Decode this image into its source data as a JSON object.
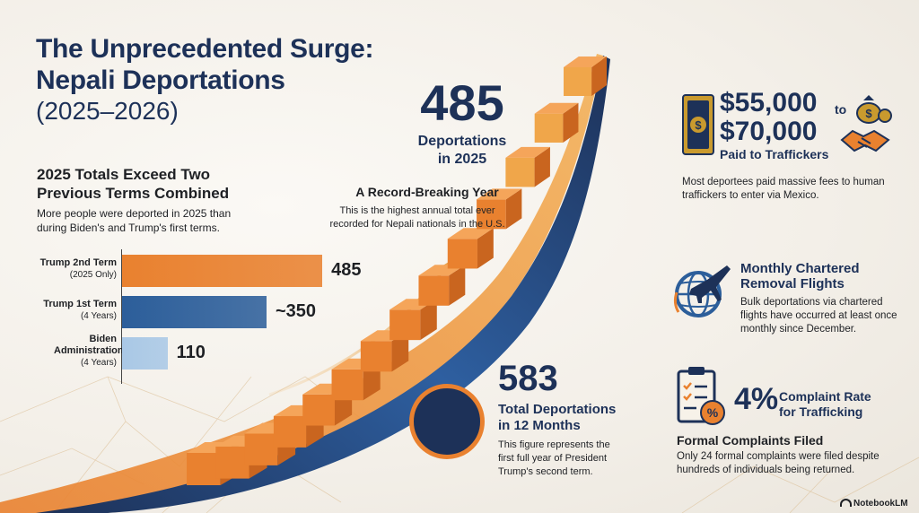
{
  "title": {
    "line1": "The Unprecedented Surge:",
    "line2": "Nepali Deportations",
    "years": "(2025–2026)"
  },
  "comparison": {
    "heading_line1": "2025 Totals Exceed Two",
    "heading_line2": "Previous Terms Combined",
    "body": "More people were deported in 2025 than during Biden's and Trump's first terms."
  },
  "chart_data": {
    "type": "bar",
    "orientation": "horizontal",
    "categories": [
      {
        "name": "Trump 2nd Term",
        "sub": "(2025 Only)"
      },
      {
        "name": "Trump 1st Term",
        "sub": "(4 Years)"
      },
      {
        "name": "Biden Administration",
        "sub": "(4 Years)"
      }
    ],
    "values": [
      485,
      350,
      110
    ],
    "value_labels": [
      "485",
      "~350",
      "110"
    ],
    "colors": [
      "#e9812f",
      "#2c5e9a",
      "#a9c8e6"
    ],
    "xlim": [
      0,
      500
    ]
  },
  "highlight": {
    "number": "485",
    "label_line1": "Deportations",
    "label_line2": "in 2025",
    "heading": "A Record-Breaking Year",
    "body": "This is the highest annual total ever recorded for Nepali nationals in the U.S."
  },
  "total": {
    "number": "583",
    "label_line1": "Total Deportations",
    "label_line2": "in 12 Months",
    "body": "This figure represents the first full year of President Trump's second term."
  },
  "traffickers": {
    "amount1": "$55,000",
    "to": "to",
    "amount2": "$70,000",
    "label": "Paid to Traffickers",
    "body": "Most deportees paid massive fees to human traffickers to enter via Mexico."
  },
  "flights": {
    "heading_line1": "Monthly Chartered",
    "heading_line2": "Removal Flights",
    "body": "Bulk deportations via chartered flights have occurred at least once monthly since December."
  },
  "complaints": {
    "percent": "4%",
    "rate_line1": "Complaint Rate",
    "rate_line2": "for Trafficking",
    "heading": "Formal Complaints Filed",
    "body": "Only 24 formal complaints were filed despite hundreds of individuals being returned."
  },
  "branding": {
    "name": "NotebookLM"
  },
  "colors": {
    "navy": "#1d3158",
    "orange": "#e9812f",
    "blue": "#2c5e9a",
    "light_blue": "#a9c8e6",
    "gold": "#c99a2e"
  }
}
